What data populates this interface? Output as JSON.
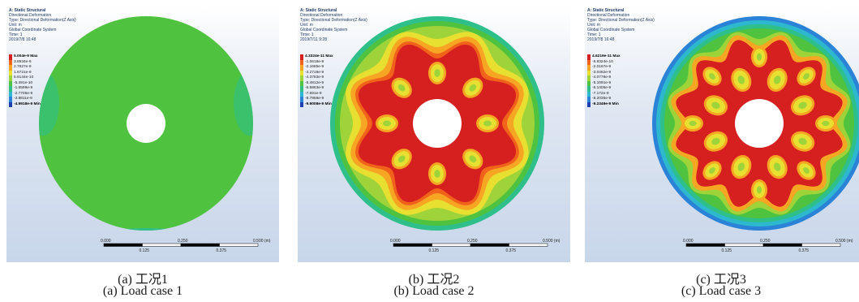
{
  "panels": [
    {
      "header": [
        "A: Static Structural",
        "Directional Deformation",
        "Type: Directional Deformation(Z Axis)",
        "Unit: m",
        "Global Coordinate System",
        "Time: 1",
        "2019/7/8 16:48"
      ],
      "legend": [
        {
          "label": "5.004e-9 Max",
          "color": "#d61f1f",
          "bold": true
        },
        {
          "label": "3.8934e-9",
          "color": "#f1621a"
        },
        {
          "label": "2.7827e-9",
          "color": "#f7a624"
        },
        {
          "label": "1.6721e-9",
          "color": "#e8e030"
        },
        {
          "label": "5.6144e-10",
          "color": "#9fd33a"
        },
        {
          "label": "-5.491e-10",
          "color": "#4fc23f"
        },
        {
          "label": "-1.6599e-9",
          "color": "#2fbf8a"
        },
        {
          "label": "-2.7705e-9",
          "color": "#2eb8cf"
        },
        {
          "label": "-3.8811e-9",
          "color": "#2a83d6"
        },
        {
          "label": "-4.9918e-9 Min",
          "color": "#1f3fb0",
          "bold": true
        }
      ],
      "scale": {
        "top": [
          "0.000",
          "0.250",
          "0.500 (m)"
        ],
        "bottom": [
          "0.125",
          "0.375"
        ]
      },
      "caption_cn": "(a) 工况1",
      "caption_en": "(a) Load case 1"
    },
    {
      "header": [
        "A: Static Structural",
        "Directional Deformation",
        "Type: Directional Deformation(Z Axis)",
        "Unit: m",
        "Global Coordinate System",
        "Time: 1",
        "2019/7/11 9:28"
      ],
      "legend": [
        {
          "label": "4.3324e-11 Max",
          "color": "#d61f1f",
          "bold": true
        },
        {
          "label": "-1.0618e-9",
          "color": "#f1621a"
        },
        {
          "label": "-2.1685e-9",
          "color": "#f7a624"
        },
        {
          "label": "-3.2718e-9",
          "color": "#e8e030"
        },
        {
          "label": "-4.3783e-9",
          "color": "#9fd33a"
        },
        {
          "label": "-5.4812e-9",
          "color": "#4fc23f"
        },
        {
          "label": "-6.5863e-9",
          "color": "#2fbf8a"
        },
        {
          "label": "-7.691e-9",
          "color": "#2eb8cf"
        },
        {
          "label": "-8.7959e-9",
          "color": "#2a83d6"
        },
        {
          "label": "-9.9008e-9 Min",
          "color": "#1f3fb0",
          "bold": true
        }
      ],
      "scale": {
        "top": [
          "0.000",
          "0.250",
          "0.500 (m)"
        ],
        "bottom": [
          "0.125",
          "0.375"
        ]
      },
      "caption_cn": "(b) 工况2",
      "caption_en": "(b) Load case 2"
    },
    {
      "header": [
        "A: Static Structural",
        "Directional Deformation",
        "Type: Directional Deformation(Z Axis)",
        "Unit: m",
        "Global Coordinate System",
        "Time: 1",
        "2019/7/8 16:48"
      ],
      "legend": [
        {
          "label": "4.6219e-11 Max",
          "color": "#d61f1f",
          "bold": true
        },
        {
          "label": "-9.8324e-10",
          "color": "#f1621a"
        },
        {
          "label": "-2.0167e-9",
          "color": "#f7a624"
        },
        {
          "label": "-3.0462e-9",
          "color": "#e8e030"
        },
        {
          "label": "-4.0778e-9",
          "color": "#9fd33a"
        },
        {
          "label": "-5.1091e-9",
          "color": "#4fc23f"
        },
        {
          "label": "-6.1405e-9",
          "color": "#2fbf8a"
        },
        {
          "label": "-7.172e-9",
          "color": "#2eb8cf"
        },
        {
          "label": "-8.2035e-9",
          "color": "#2a83d6"
        },
        {
          "label": "-9.2349e-9 Min",
          "color": "#1f3fb0",
          "bold": true
        }
      ],
      "scale": {
        "top": [
          "0.000",
          "0.250",
          "0.500 (m)"
        ],
        "bottom": [
          "0.125",
          "0.375"
        ]
      },
      "caption_cn": "(c) 工况3",
      "caption_en": "(c) Load case 3"
    }
  ]
}
